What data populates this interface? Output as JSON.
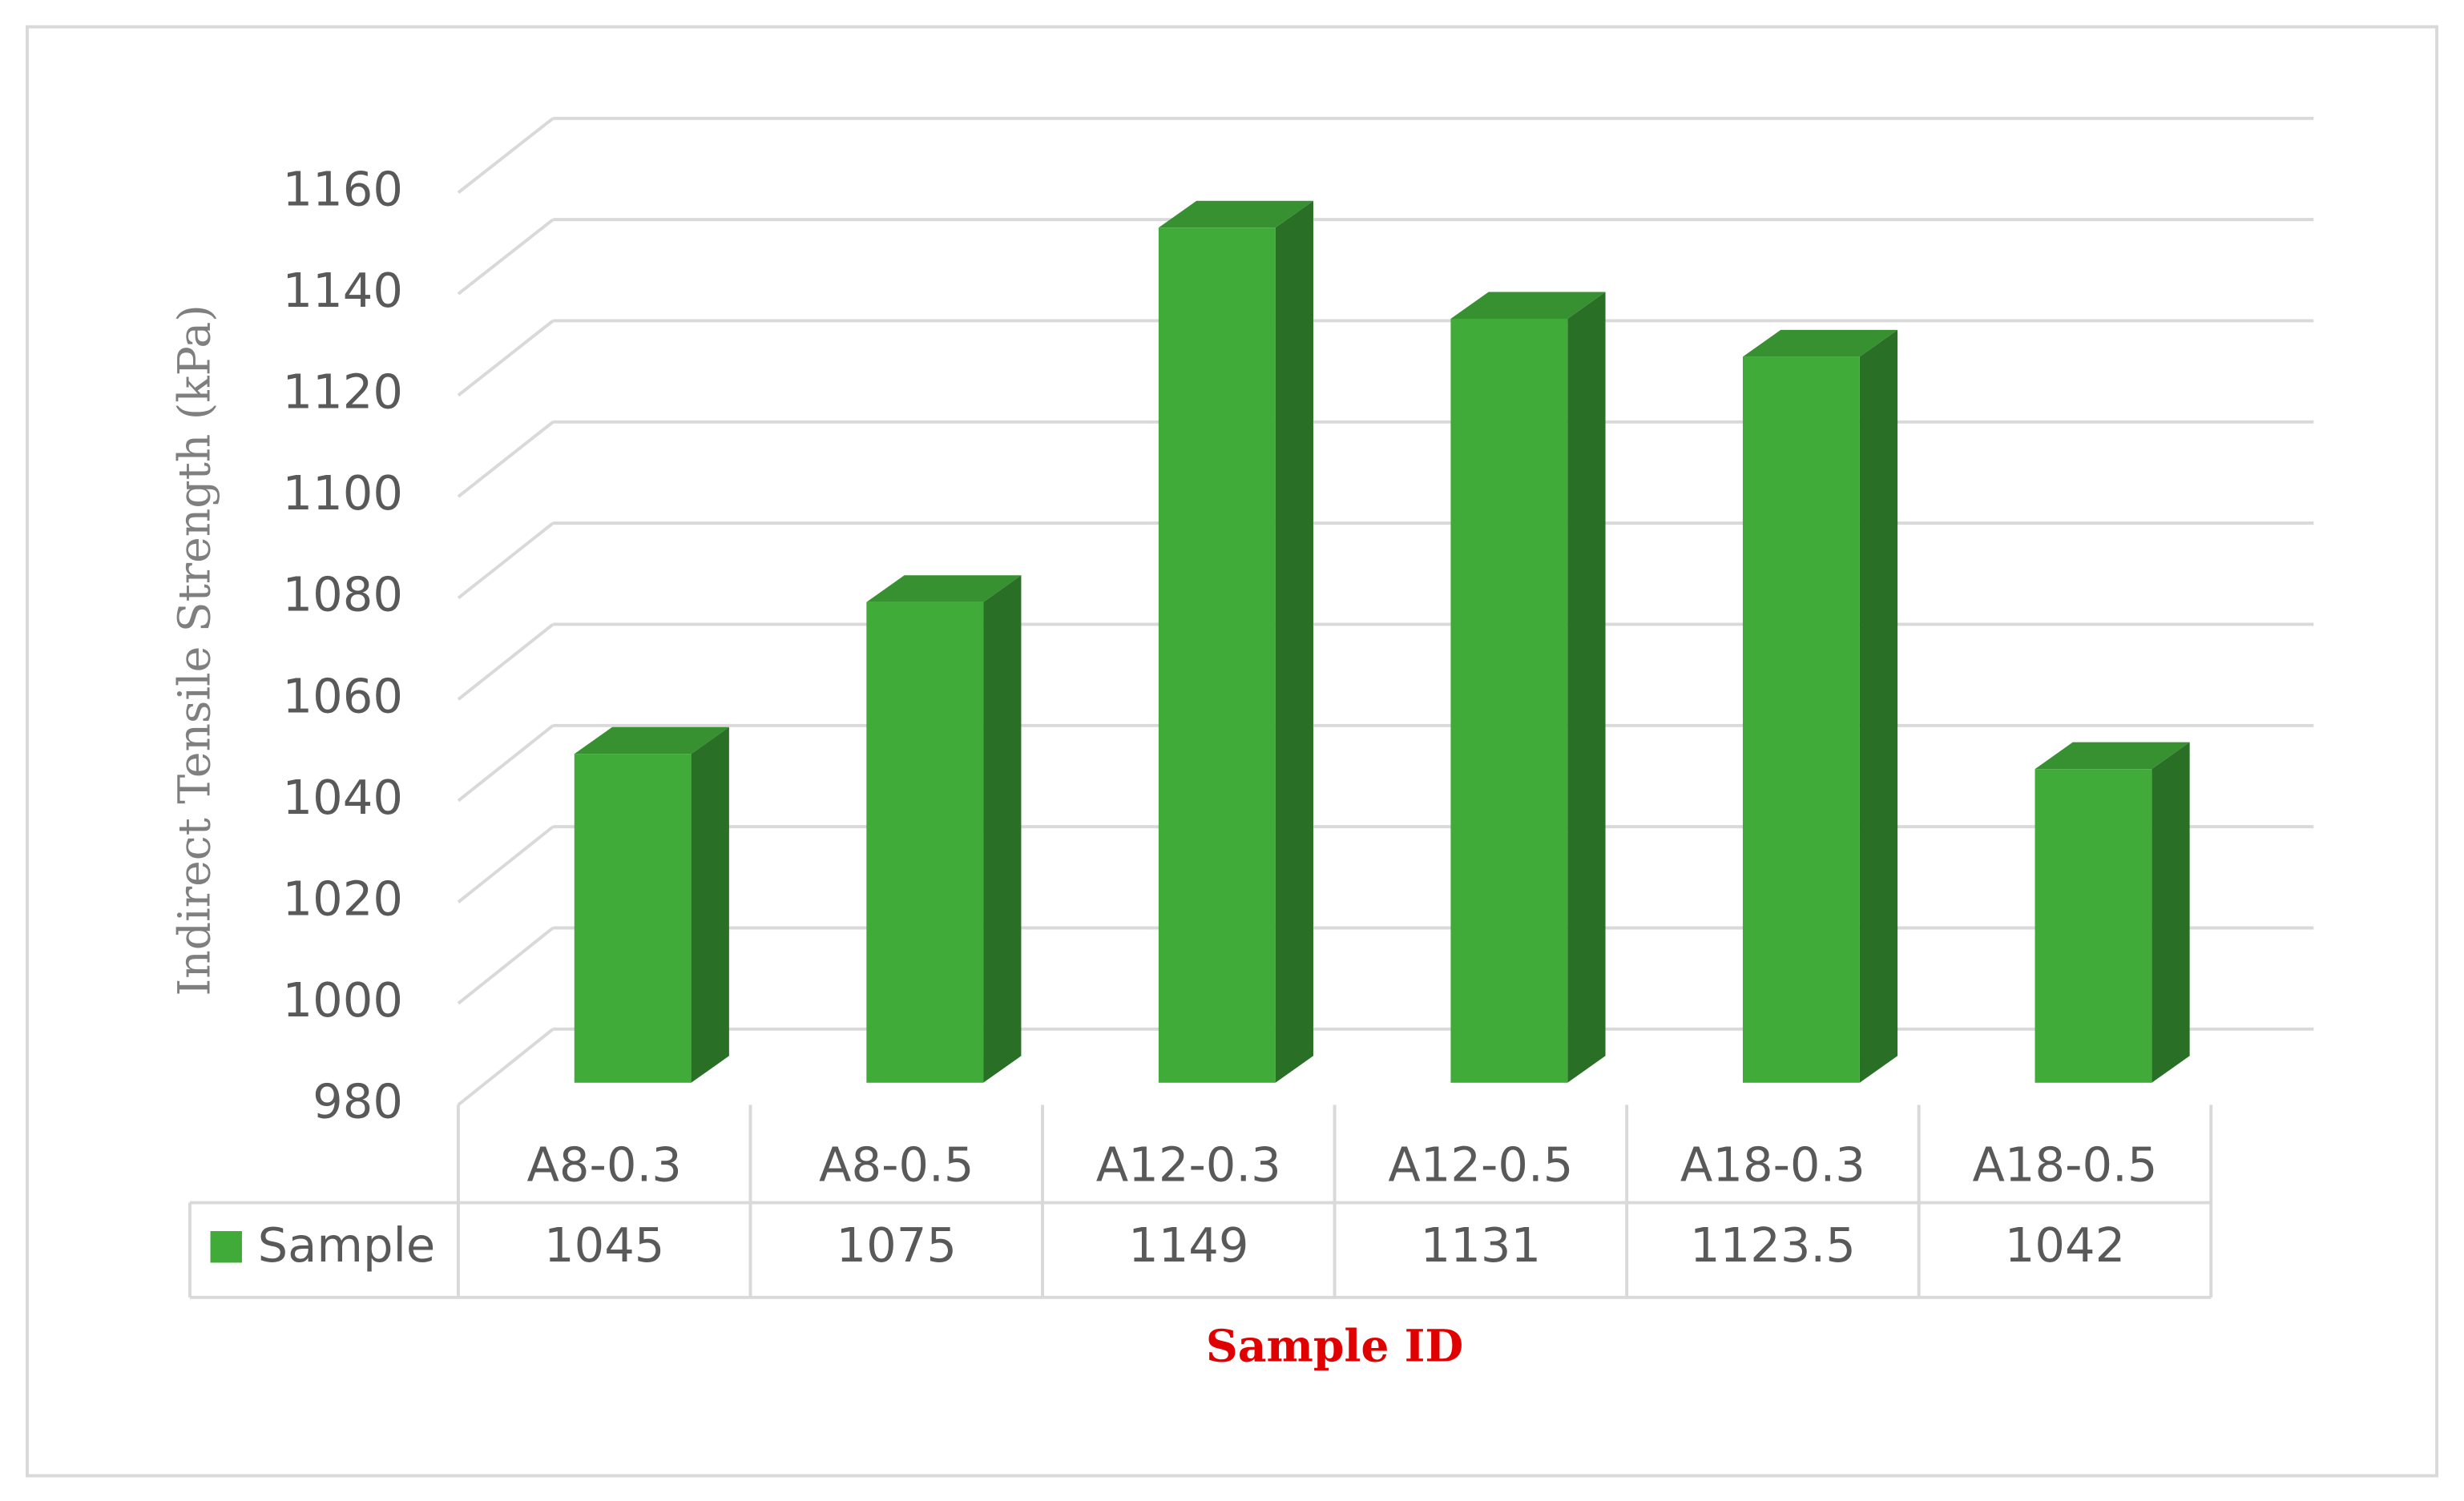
{
  "chart_data": {
    "type": "bar3d",
    "y_label": "Indirect Tensile Strength (kPa)",
    "x_label": "Sample ID",
    "categories": [
      "A8-0.3",
      "A8-0.5",
      "A12-0.3",
      "A12-0.5",
      "A18-0.3",
      "A18-0.5"
    ],
    "series": [
      {
        "name": "Sample",
        "color": "#41ab3a",
        "values": [
          1045,
          1075,
          1149,
          1131,
          1123.5,
          1042
        ]
      }
    ],
    "ylim": [
      980,
      1160
    ],
    "yticks": [
      980,
      1000,
      1020,
      1040,
      1060,
      1080,
      1100,
      1120,
      1140,
      1160
    ],
    "grid": true
  }
}
